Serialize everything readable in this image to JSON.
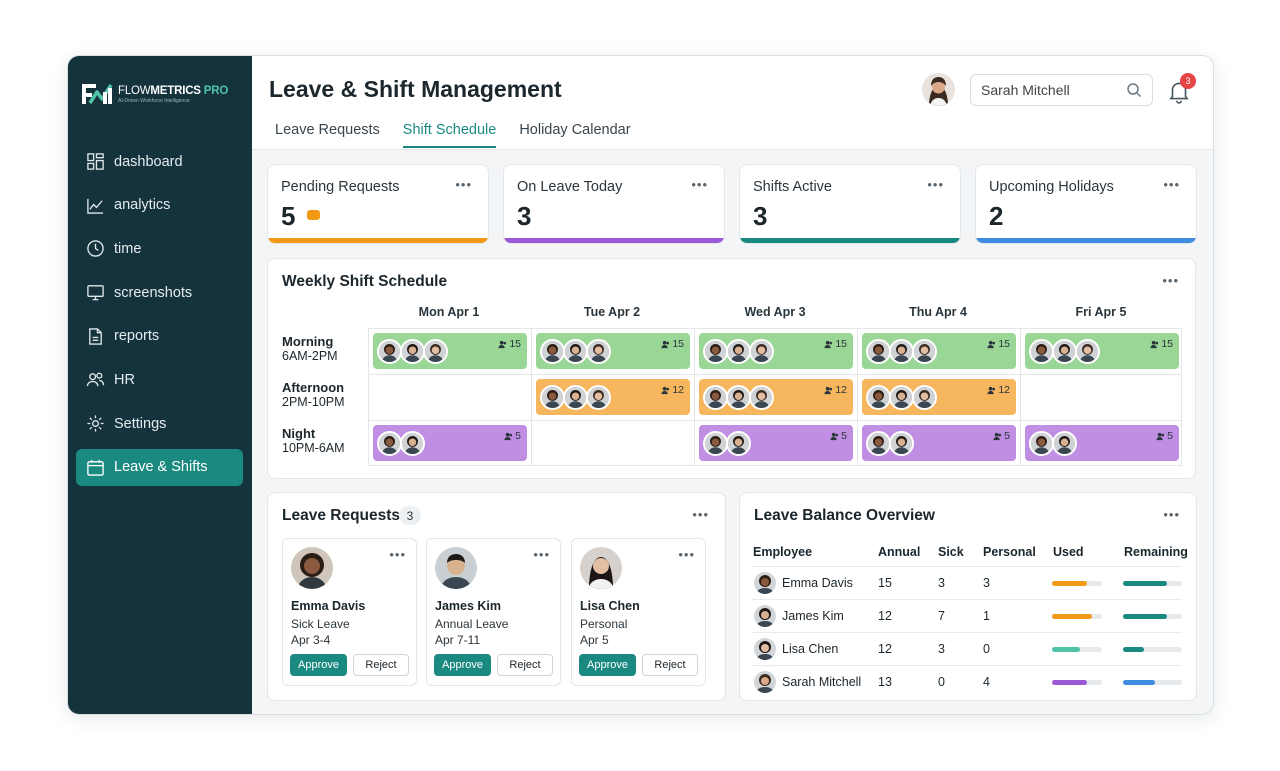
{
  "brand": {
    "name_regular": "FLOW",
    "name_bold": "METRICS",
    "name_pro": "PRO",
    "tagline": "AI-Driven Workforce Intelligence"
  },
  "sidebar": {
    "items": [
      {
        "label": "dashboard",
        "icon": "dashboard-icon"
      },
      {
        "label": "analytics",
        "icon": "analytics-icon"
      },
      {
        "label": "time",
        "icon": "clock-icon"
      },
      {
        "label": "screenshots",
        "icon": "monitor-icon"
      },
      {
        "label": "reports",
        "icon": "document-icon"
      },
      {
        "label": "HR",
        "icon": "users-icon"
      },
      {
        "label": "Settings",
        "icon": "gear-icon"
      },
      {
        "label": "Leave & Shifts",
        "icon": "calendar-icon",
        "active": true
      }
    ]
  },
  "header": {
    "title": "Leave & Shift Management",
    "tabs": [
      {
        "label": "Leave Requests"
      },
      {
        "label": "Shift Schedule",
        "active": true
      },
      {
        "label": "Holiday Calendar"
      }
    ],
    "search_value": "Sarah Mitchell",
    "notifications": "3"
  },
  "stats": [
    {
      "label": "Pending Requests",
      "value": "5",
      "color": "#f29a16"
    },
    {
      "label": "On Leave Today",
      "value": "3",
      "color": "#9b59d6"
    },
    {
      "label": "Shifts Active",
      "value": "3",
      "color": "#1a8a80"
    },
    {
      "label": "Upcoming Holidays",
      "value": "2",
      "color": "#3f8be0"
    }
  ],
  "schedule": {
    "title": "Weekly Shift Schedule",
    "days": [
      "Mon Apr 1",
      "Tue Apr 2",
      "Wed Apr 3",
      "Thu Apr 4",
      "Fri Apr 5"
    ],
    "shifts": [
      {
        "name": "Morning",
        "hours": "6AM-2PM",
        "color": "#9ad796",
        "cells": [
          {
            "faces": 3,
            "count": "15"
          },
          {
            "faces": 3,
            "count": "15"
          },
          {
            "faces": 3,
            "count": "15"
          },
          {
            "faces": 3,
            "count": "15"
          },
          {
            "faces": 3,
            "count": "15"
          }
        ]
      },
      {
        "name": "Afternoon",
        "hours": "2PM-10PM",
        "color": "#f6b65e",
        "cells": [
          null,
          {
            "faces": 3,
            "count": "12"
          },
          {
            "faces": 3,
            "count": "12"
          },
          {
            "faces": 3,
            "count": "12"
          },
          null
        ]
      },
      {
        "name": "Night",
        "hours": "10PM-6AM",
        "color": "#c08fe4",
        "cells": [
          {
            "faces": 2,
            "count": "5"
          },
          null,
          {
            "faces": 2,
            "count": "5"
          },
          {
            "faces": 2,
            "count": "5"
          },
          {
            "faces": 2,
            "count": "5"
          }
        ]
      }
    ]
  },
  "leave_requests": {
    "title": "Leave Requests",
    "count": "3",
    "items": [
      {
        "name": "Emma Davis",
        "type": "Sick Leave",
        "dates": "Apr 3-4"
      },
      {
        "name": "James Kim",
        "type": "Annual Leave",
        "dates": "Apr 7-11"
      },
      {
        "name": "Lisa Chen",
        "type": "Personal",
        "dates": "Apr 5"
      }
    ],
    "approve_label": "Approve",
    "reject_label": "Reject"
  },
  "balance": {
    "title": "Leave Balance Overview",
    "headers": [
      "Employee",
      "Annual",
      "Sick",
      "Personal",
      "Used",
      "Remaining"
    ],
    "rows": [
      {
        "name": "Emma Davis",
        "annual": "15",
        "sick": "3",
        "personal": "3",
        "used": 0.7,
        "used_color": "#f29a16",
        "remaining": 0.75,
        "remaining_color": "#1a8a80"
      },
      {
        "name": "James Kim",
        "annual": "12",
        "sick": "7",
        "personal": "1",
        "used": 0.8,
        "used_color": "#f29a16",
        "remaining": 0.75,
        "remaining_color": "#1a8a80"
      },
      {
        "name": "Lisa Chen",
        "annual": "12",
        "sick": "3",
        "personal": "0",
        "used": 0.55,
        "used_color": "#4fc3a8",
        "remaining": 0.35,
        "remaining_color": "#1a8a80"
      },
      {
        "name": "Sarah Mitchell",
        "annual": "13",
        "sick": "0",
        "personal": "4",
        "used": 0.7,
        "used_color": "#9b59d6",
        "remaining": 0.55,
        "remaining_color": "#3f8be0"
      }
    ]
  }
}
